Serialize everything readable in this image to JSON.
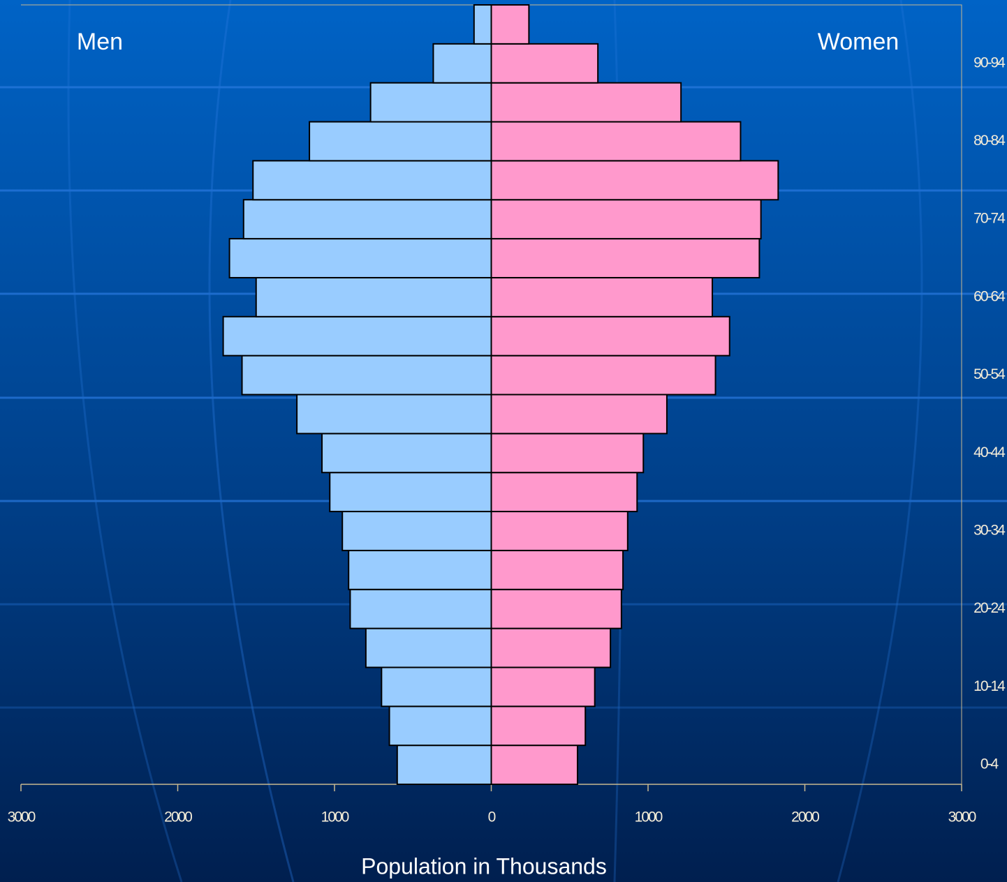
{
  "chart_data": {
    "type": "bar",
    "orientation": "horizontal",
    "stacked": false,
    "x_label": "Population in Thousands",
    "categories": [
      "0-4",
      null,
      "10-14",
      null,
      "20-24",
      null,
      "30-34",
      null,
      "40-44",
      null,
      "50-54",
      null,
      "60-64",
      null,
      "70-74",
      null,
      "80-84",
      null,
      "90-94",
      null
    ],
    "series": [
      {
        "name": "Men",
        "color": "#99ccff",
        "values": [
          -600,
          -650,
          -700,
          -800,
          -900,
          -910,
          -950,
          -1030,
          -1080,
          -1240,
          -1590,
          -1710,
          -1500,
          -1670,
          -1580,
          -1520,
          -1160,
          -770,
          -370,
          -110
        ]
      },
      {
        "name": "Women",
        "color": "#ff99cc",
        "values": [
          550,
          600,
          660,
          760,
          830,
          840,
          870,
          930,
          970,
          1120,
          1430,
          1520,
          1410,
          1710,
          1720,
          1830,
          1590,
          1210,
          680,
          240
        ]
      }
    ],
    "xlim": [
      -3000,
      3000
    ],
    "xticks": [
      {
        "value": -3000,
        "label": "3000"
      },
      {
        "value": -2000,
        "label": "2000"
      },
      {
        "value": -1000,
        "label": "1000"
      },
      0,
      1000,
      2000,
      3000
    ]
  }
}
